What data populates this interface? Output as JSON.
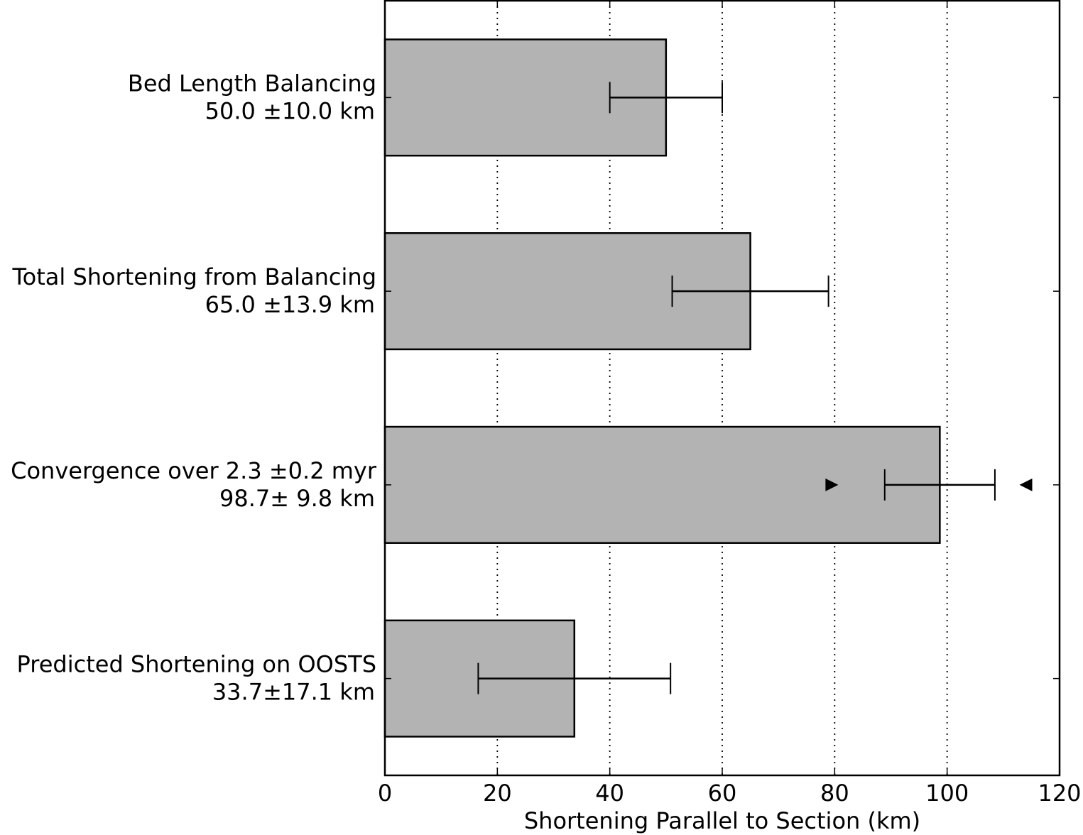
{
  "chart_data": {
    "type": "bar",
    "orientation": "horizontal",
    "title": "",
    "xlabel": "Shortening Parallel to Section (km)",
    "ylabel": "",
    "xlim": [
      0,
      120
    ],
    "xticks": [
      0,
      20,
      40,
      60,
      80,
      100,
      120
    ],
    "xtick_labels": [
      "0",
      "20",
      "40",
      "60",
      "80",
      "100",
      "120"
    ],
    "grid": "vertical dotted",
    "bar_color": "#b3b3b3",
    "bars": [
      {
        "label": "Bed Length Balancing",
        "sublabel": "50.0 ±10.0 km",
        "value": 50.0,
        "error": 10.0
      },
      {
        "label": "Total Shortening from Balancing",
        "sublabel": "65.0 ±13.9 km",
        "value": 65.0,
        "error": 13.9
      },
      {
        "label": "Convergence over 2.3 ±0.2 myr",
        "sublabel": "98.7± 9.8 km",
        "value": 98.7,
        "error": 9.8,
        "markers": [
          {
            "x": 79.5,
            "shape": "triangle-right"
          },
          {
            "x": 114.0,
            "shape": "triangle-left"
          }
        ]
      },
      {
        "label": "Predicted Shortening on OOSTS",
        "sublabel": "33.7±17.1 km",
        "value": 33.7,
        "error": 17.1
      }
    ]
  }
}
